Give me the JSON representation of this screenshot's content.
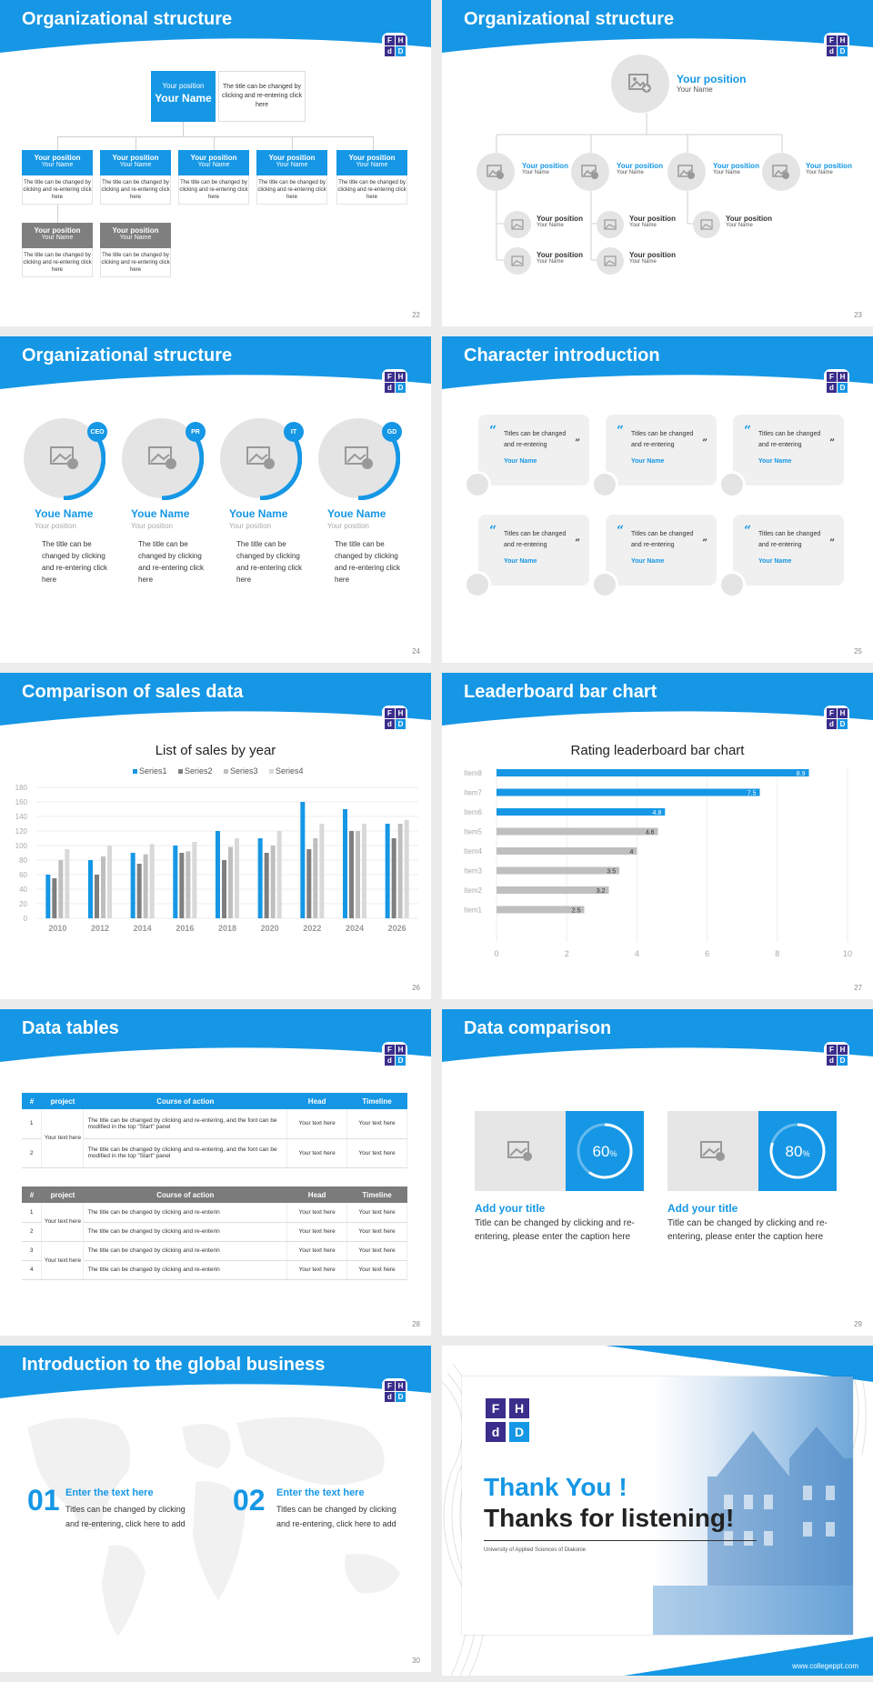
{
  "slides": [
    {
      "title": "Organizational structure",
      "page": "22"
    },
    {
      "title": "Organizational structure",
      "page": "23"
    },
    {
      "title": "Organizational structure",
      "page": "24"
    },
    {
      "title": "Character introduction",
      "page": "25"
    },
    {
      "title": "Comparison of sales data",
      "page": "26"
    },
    {
      "title": "Leaderboard bar chart",
      "page": "27"
    },
    {
      "title": "Data tables",
      "page": "28"
    },
    {
      "title": "Data comparison",
      "page": "29"
    },
    {
      "title": "Introduction to the global business",
      "page": "30"
    }
  ],
  "logo": {
    "l1": "F",
    "l2": "H",
    "l3": "d",
    "l4": "D",
    "purple": "#3a2e8c",
    "blue": "#1597e5"
  },
  "org1": {
    "top_position": "Your position",
    "top_name": "Your Name",
    "top_desc": "The title can be changed by clicking and re-entering click here",
    "cards": [
      {
        "position": "Your position",
        "name": "Your Name",
        "desc": "The title can be changed by clicking and re-entering click here"
      },
      {
        "position": "Your position",
        "name": "Your Name",
        "desc": "The title can be changed by clicking and re-entering click here"
      },
      {
        "position": "Your position",
        "name": "Your Name",
        "desc": "The title can be changed by clicking and re-entering click here"
      },
      {
        "position": "Your position",
        "name": "Your Name",
        "desc": "The title can be changed by clicking and re-entering click here"
      },
      {
        "position": "Your position",
        "name": "Your Name",
        "desc": "The title can be changed by clicking and re-entering click here"
      },
      {
        "position": "Your position",
        "name": "Your Name",
        "desc": "The title can be changed by clicking and re-entering click here"
      },
      {
        "position": "Your position",
        "name": "Your Name",
        "desc": "The title can be changed by clicking and re-entering click here"
      }
    ]
  },
  "org2": {
    "top_position": "Your position",
    "top_name": "Your Name",
    "level2": [
      {
        "position": "Your position",
        "name": "Your Name"
      },
      {
        "position": "Your position",
        "name": "Your Name"
      },
      {
        "position": "Your position",
        "name": "Your Name"
      },
      {
        "position": "Your position",
        "name": "Your Name"
      }
    ],
    "level3": [
      {
        "position": "Your position",
        "name": "Your Name"
      },
      {
        "position": "Your position",
        "name": "Your Name"
      },
      {
        "position": "Your position",
        "name": "Your Name"
      },
      {
        "position": "Your position",
        "name": "Your Name"
      },
      {
        "position": "Your position",
        "name": "Your Name"
      }
    ]
  },
  "org3": [
    {
      "badge": "CEO",
      "name": "Youe Name",
      "position": "Your position",
      "desc": "The title can be changed by clicking and re-entering click here"
    },
    {
      "badge": "PR",
      "name": "Youe Name",
      "position": "Your position",
      "desc": "The title can be changed by clicking and re-entering click here"
    },
    {
      "badge": "IT",
      "name": "Youe Name",
      "position": "Your position",
      "desc": "The title can be changed by clicking and re-entering click here"
    },
    {
      "badge": "GD",
      "name": "Youe Name",
      "position": "Your position",
      "desc": "The title can be changed by clicking and re-entering click here"
    }
  ],
  "characters": [
    {
      "text": "Titles can be changed and re-entering",
      "name": "Your Name"
    },
    {
      "text": "Titles can be changed and re-entering",
      "name": "Your Name"
    },
    {
      "text": "Titles can be changed and re-entering",
      "name": "Your Name"
    },
    {
      "text": "Titles can be changed and re-entering",
      "name": "Your Name"
    },
    {
      "text": "Titles can be changed and re-entering",
      "name": "Your Name"
    },
    {
      "text": "Titles can be changed and re-entering",
      "name": "Your Name"
    }
  ],
  "chart_data": [
    {
      "type": "bar",
      "title": "List of sales by year",
      "categories": [
        "2010",
        "2012",
        "2014",
        "2016",
        "2018",
        "2020",
        "2022",
        "2024",
        "2026"
      ],
      "series": [
        {
          "name": "Series1",
          "color": "#1597e5",
          "values": [
            60,
            80,
            90,
            100,
            120,
            110,
            160,
            150,
            130
          ]
        },
        {
          "name": "Series2",
          "color": "#7f7f7f",
          "values": [
            55,
            60,
            75,
            90,
            80,
            90,
            95,
            120,
            110
          ]
        },
        {
          "name": "Series3",
          "color": "#bfbfbf",
          "values": [
            80,
            85,
            88,
            92,
            98,
            100,
            110,
            120,
            130
          ]
        },
        {
          "name": "Series4",
          "color": "#d9d9d9",
          "values": [
            95,
            100,
            102,
            105,
            110,
            120,
            130,
            130,
            135
          ]
        }
      ],
      "ylim": [
        0,
        180
      ],
      "yticks": [
        "0",
        "20",
        "40",
        "60",
        "80",
        "100",
        "120",
        "140",
        "160",
        "180"
      ],
      "legend": "top",
      "grid": true
    },
    {
      "type": "bar",
      "orientation": "horizontal",
      "title": "Rating leaderboard bar chart",
      "categories": [
        "Item8",
        "Item7",
        "Item6",
        "Item5",
        "Item4",
        "Item3",
        "Item2",
        "Item1"
      ],
      "values": [
        8.9,
        7.5,
        4.8,
        4.6,
        4,
        3.5,
        3.2,
        2.5
      ],
      "labels": [
        "8.9",
        "7.5",
        "4.8",
        "4.6",
        "4",
        "3.5",
        "3.2",
        "2.5"
      ],
      "highlight_color": "#1597e5",
      "base_color": "#bfbfbf",
      "xlim": [
        0,
        10
      ],
      "xticks": [
        "0",
        "2",
        "4",
        "6",
        "8",
        "10"
      ],
      "grid": true
    }
  ],
  "table1": {
    "headers": [
      "#",
      "project",
      "Course of action",
      "Head",
      "Timeline"
    ],
    "project": "Your text here",
    "rows": [
      {
        "num": "1",
        "action": "The title can be changed by clicking and re-entering, and the font can be modified in the top \"Start\" panel",
        "head": "Your text here",
        "time": "Your text here"
      },
      {
        "num": "2",
        "action": "The title can be changed by clicking and re-entering, and the font can be modified in the top \"Start\" panel",
        "head": "Your text here",
        "time": "Your text here"
      }
    ]
  },
  "table2": {
    "headers": [
      "#",
      "project",
      "Course of action",
      "Head",
      "Timeline"
    ],
    "project1": "Your text here",
    "project2": "Your text here",
    "rows": [
      {
        "num": "1",
        "action": "The title can be changed by clicking and re-enterin",
        "head": "Your text here",
        "time": "Your text here"
      },
      {
        "num": "2",
        "action": "The title can be changed by clicking and re-enterin",
        "head": "Your text here",
        "time": "Your text here"
      },
      {
        "num": "3",
        "action": "The title can be changed by clicking and re-enterin",
        "head": "Your text here",
        "time": "Your text here"
      },
      {
        "num": "4",
        "action": "The title can be changed by clicking and re-enterin",
        "head": "Your text here",
        "time": "Your text here"
      }
    ]
  },
  "comparison": [
    {
      "percent": 60,
      "label_num": "60",
      "label_unit": "%",
      "title": "Add your title",
      "desc": "Title can be changed by clicking and re-entering, please enter the caption here"
    },
    {
      "percent": 80,
      "label_num": "80",
      "label_unit": "%",
      "title": "Add your title",
      "desc": "Title can be changed by clicking and re-entering, please enter the caption here"
    }
  ],
  "global": [
    {
      "num": "01",
      "title": "Enter the text here",
      "desc": "Titles can be changed by clicking and re-entering, click here to add"
    },
    {
      "num": "02",
      "title": "Enter the text here",
      "desc": "Titles can be changed by clicking and re-entering, click here to add"
    }
  ],
  "thanks": {
    "line1": "Thank You !",
    "line2": "Thanks for listening!",
    "university": "University of Applied Sciences of Diakonie",
    "url": "www.collegeppt.com"
  }
}
